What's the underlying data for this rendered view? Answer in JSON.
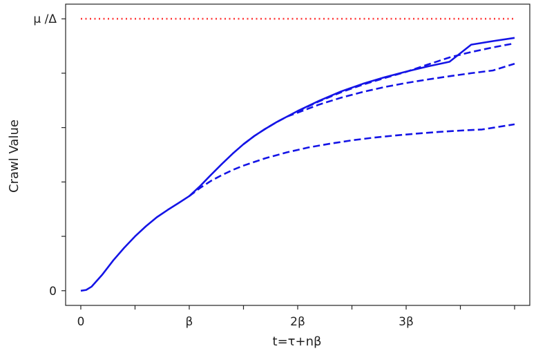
{
  "chart_data": {
    "type": "line",
    "title": "",
    "xlabel": "t=τ+nβ",
    "ylabel": "Crawl Value",
    "xlim": [
      -0.14,
      4.14
    ],
    "ylim": [
      -0.054,
      1.054
    ],
    "x_ticks": [
      {
        "value": 0,
        "label": "0"
      },
      {
        "value": 0.5,
        "label": ""
      },
      {
        "value": 1,
        "label": "β"
      },
      {
        "value": 1.5,
        "label": ""
      },
      {
        "value": 2,
        "label": "2β"
      },
      {
        "value": 2.5,
        "label": ""
      },
      {
        "value": 3,
        "label": "3β"
      },
      {
        "value": 3.5,
        "label": ""
      },
      {
        "value": 4,
        "label": ""
      }
    ],
    "y_ticks": [
      {
        "value": 0,
        "label": "0"
      },
      {
        "value": 0.2,
        "label": ""
      },
      {
        "value": 0.4,
        "label": ""
      },
      {
        "value": 0.6,
        "label": ""
      },
      {
        "value": 0.8,
        "label": ""
      },
      {
        "value": 1,
        "label": "μ /Δ"
      }
    ],
    "grid": false,
    "legend": "none",
    "series": [
      {
        "style": "dotted",
        "color": "#ff3b3b",
        "x": [
          0,
          4
        ],
        "y": [
          1,
          1
        ]
      },
      {
        "style": "solid",
        "color": "#1414e6",
        "x": [
          0,
          0.05,
          0.1,
          0.2,
          0.3,
          0.4,
          0.5,
          0.6,
          0.7,
          0.8,
          0.9,
          1.0,
          1.1,
          1.2,
          1.3,
          1.4,
          1.5,
          1.6,
          1.7,
          1.8,
          1.9,
          2.0,
          2.2,
          2.4,
          2.6,
          2.8,
          3.0,
          3.2,
          3.4,
          3.6,
          3.8,
          4.0
        ],
        "y": [
          0,
          0.003,
          0.015,
          0.06,
          0.112,
          0.158,
          0.2,
          0.237,
          0.27,
          0.297,
          0.322,
          0.348,
          0.385,
          0.426,
          0.466,
          0.504,
          0.539,
          0.569,
          0.595,
          0.619,
          0.64,
          0.661,
          0.699,
          0.733,
          0.761,
          0.785,
          0.806,
          0.825,
          0.842,
          0.905,
          0.918,
          0.93
        ]
      },
      {
        "style": "dashed",
        "color": "#1414e6",
        "x": [
          2.0,
          2.2,
          2.4,
          2.6,
          2.8,
          3.0,
          3.2,
          3.4,
          3.6,
          3.8,
          4.0
        ],
        "y": [
          0.66,
          0.697,
          0.73,
          0.758,
          0.782,
          0.805,
          0.832,
          0.858,
          0.878,
          0.895,
          0.91
        ]
      },
      {
        "style": "dashed",
        "color": "#1414e6",
        "x": [
          1.5,
          1.6,
          1.7,
          1.8,
          1.9,
          2.0,
          2.2,
          2.4,
          2.6,
          2.8,
          3.0,
          3.2,
          3.4,
          3.6,
          3.8,
          4.0
        ],
        "y": [
          0.539,
          0.569,
          0.595,
          0.619,
          0.64,
          0.655,
          0.685,
          0.71,
          0.731,
          0.749,
          0.764,
          0.777,
          0.789,
          0.8,
          0.81,
          0.835
        ]
      },
      {
        "style": "dashed",
        "color": "#1414e6",
        "x": [
          1.0,
          1.1,
          1.2,
          1.3,
          1.4,
          1.5,
          1.7,
          1.9,
          2.1,
          2.3,
          2.5,
          2.7,
          2.9,
          3.1,
          3.3,
          3.5,
          3.7,
          4.0
        ],
        "y": [
          0.348,
          0.378,
          0.404,
          0.425,
          0.444,
          0.46,
          0.487,
          0.509,
          0.527,
          0.541,
          0.553,
          0.563,
          0.571,
          0.578,
          0.584,
          0.589,
          0.593,
          0.612
        ]
      }
    ]
  }
}
